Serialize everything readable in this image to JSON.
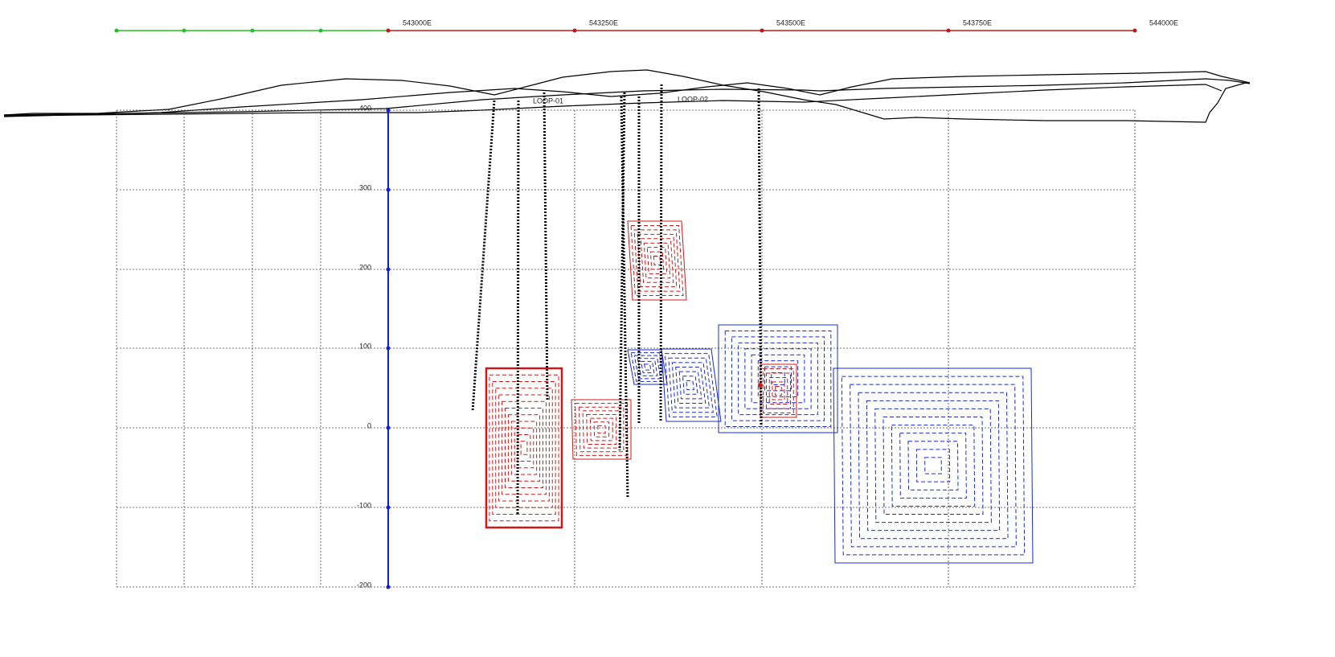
{
  "easting_axis": {
    "labels": [
      "543000E",
      "543250E",
      "543500E",
      "543750E",
      "544000E"
    ]
  },
  "elevation_axis": {
    "labels": [
      "400",
      "300",
      "200",
      "100",
      "0",
      "-100",
      "-200"
    ]
  },
  "loops": [
    "LOOP-01",
    "LOOP-02"
  ]
}
